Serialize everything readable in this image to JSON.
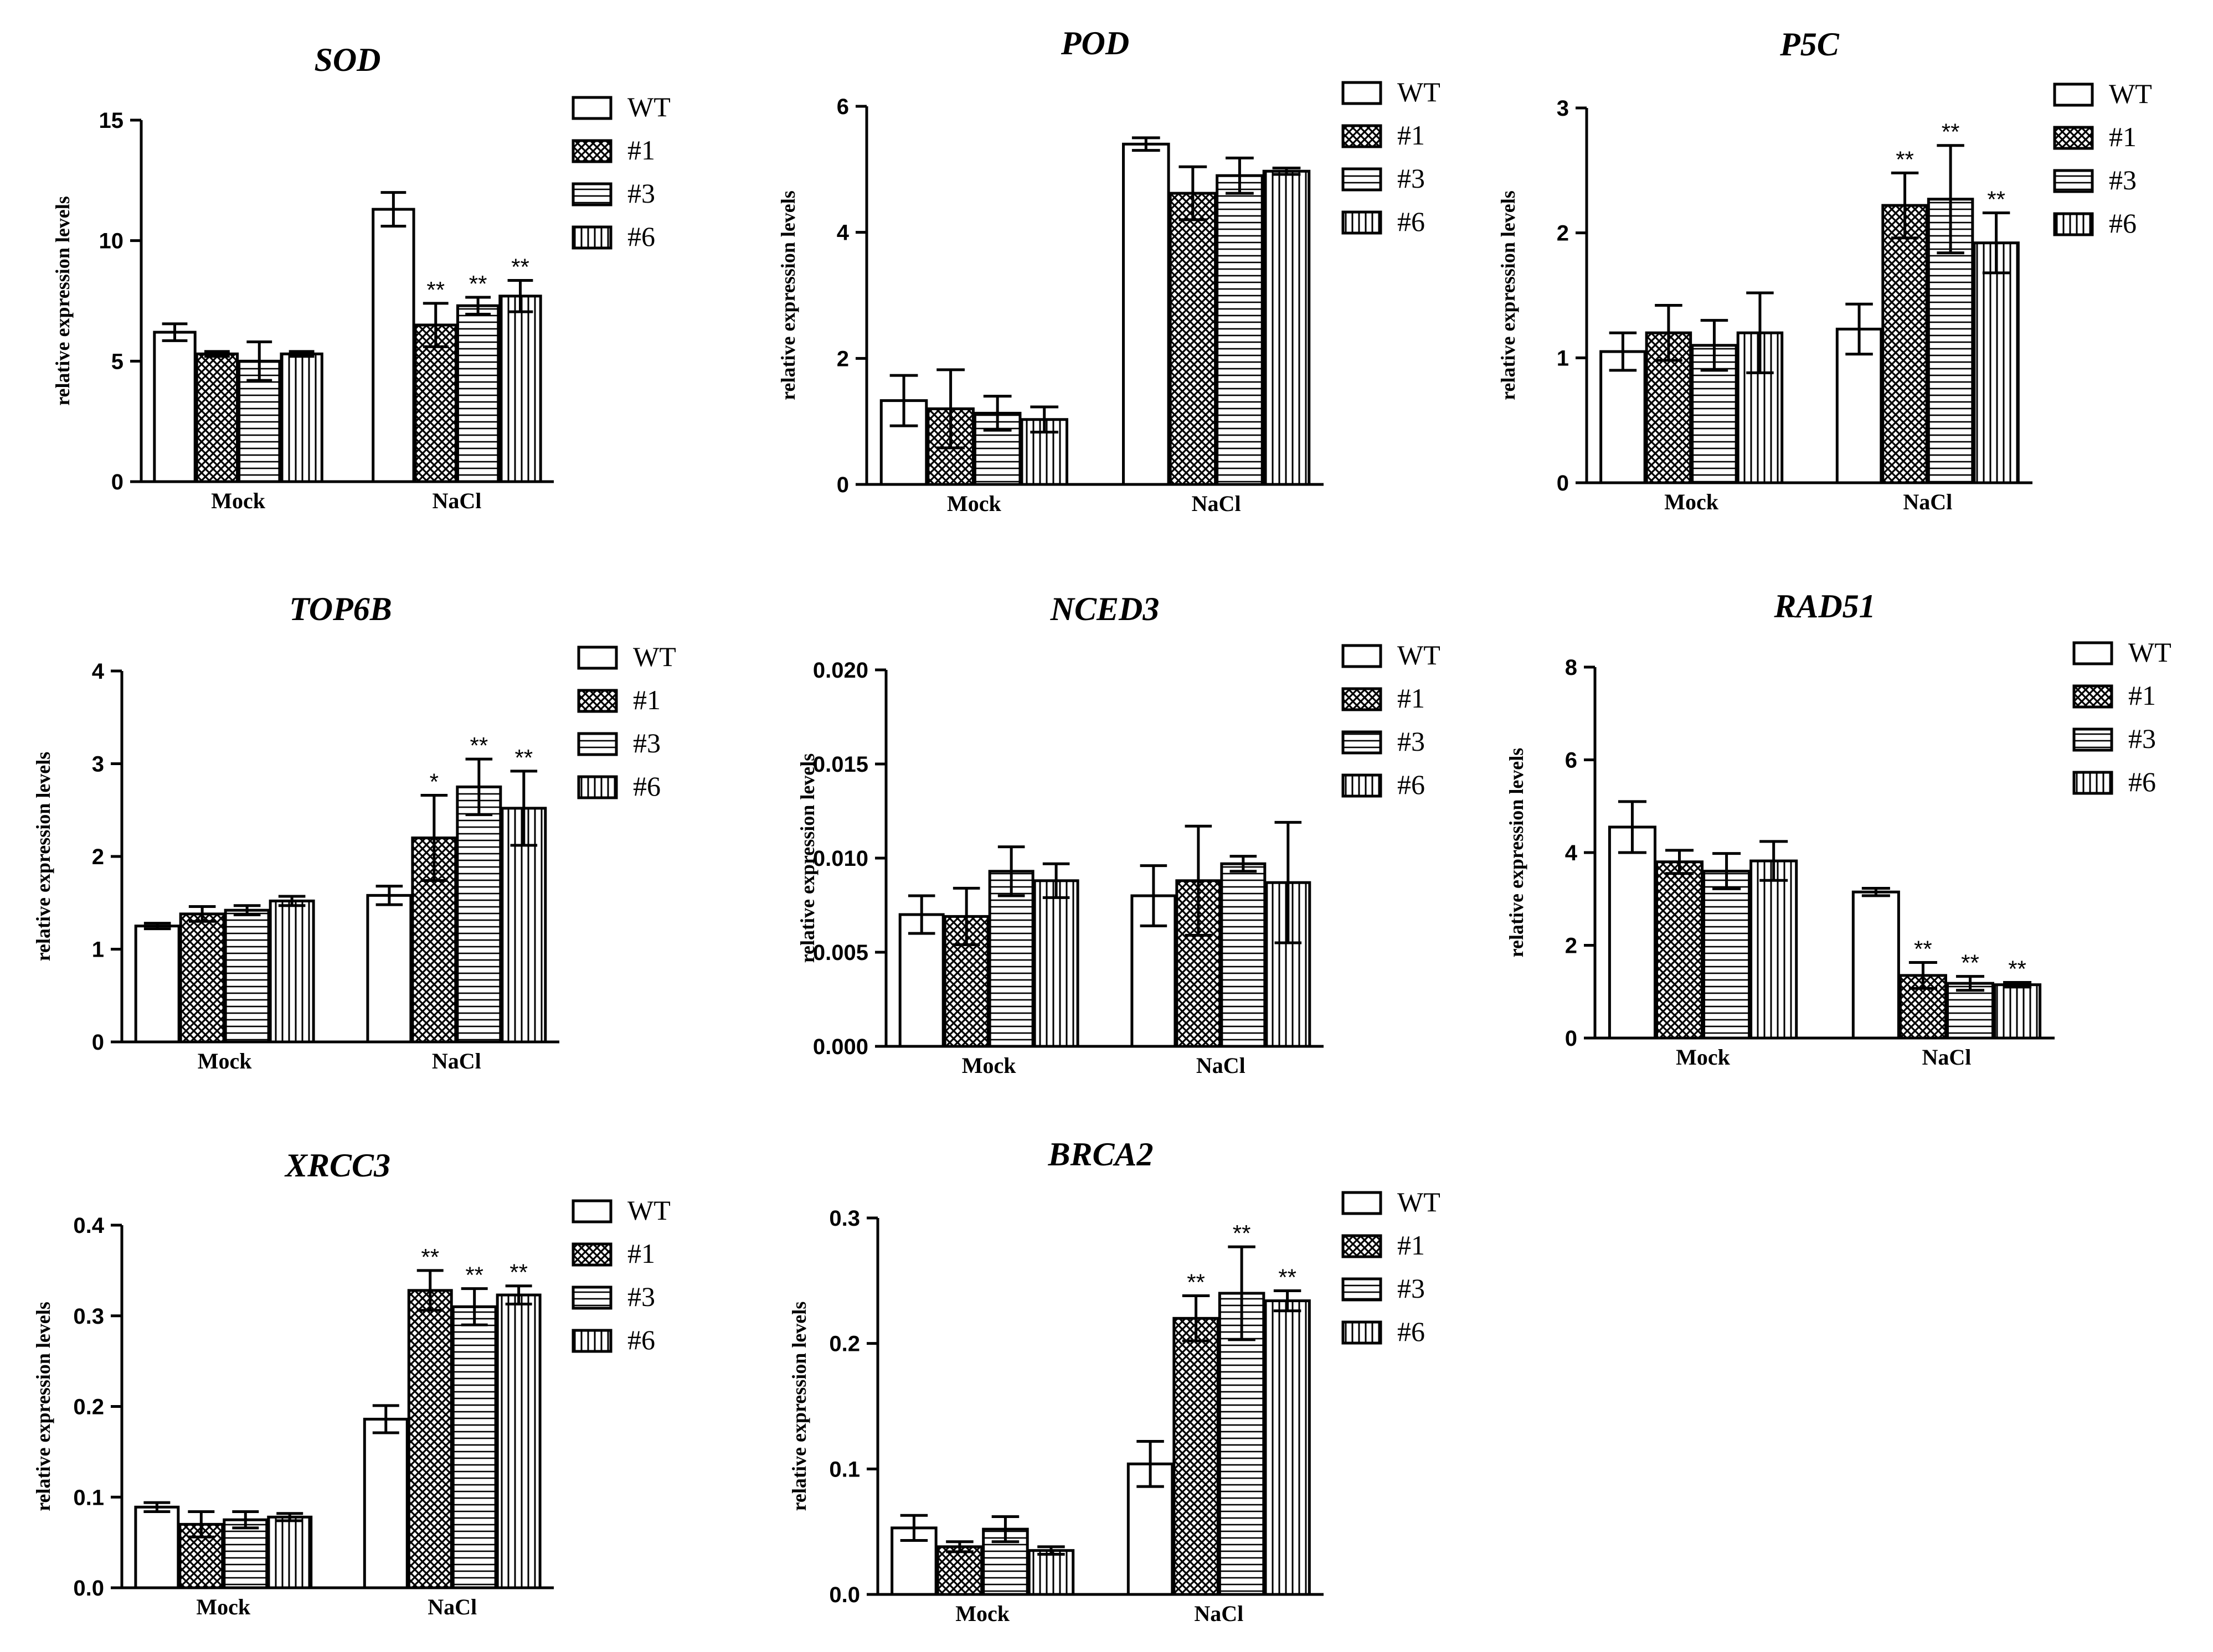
{
  "figure": {
    "legend_entries": [
      "WT",
      "#1",
      "#3",
      "#6"
    ],
    "series_patterns": [
      "blank",
      "crosshatch",
      "horizontal-lines",
      "vertical-lines"
    ],
    "colors": {
      "ink": "#000000",
      "background": "#ffffff"
    }
  },
  "chart_data": [
    {
      "type": "bar",
      "title": "SOD",
      "ylabel": "relative expression levels",
      "categories": [
        "Mock",
        "NaCl"
      ],
      "ylim": [
        0,
        15
      ],
      "yticks": [
        "0",
        "5",
        "10",
        "15"
      ],
      "series": [
        {
          "name": "WT",
          "values": [
            6.2,
            11.3
          ],
          "errors": [
            0.35,
            0.7
          ],
          "sig": [
            "",
            ""
          ]
        },
        {
          "name": "#1",
          "values": [
            5.3,
            6.5
          ],
          "errors": [
            0.1,
            0.9
          ],
          "sig": [
            "",
            "**"
          ]
        },
        {
          "name": "#3",
          "values": [
            5.0,
            7.3
          ],
          "errors": [
            0.8,
            0.35
          ],
          "sig": [
            "",
            "**"
          ]
        },
        {
          "name": "#6",
          "values": [
            5.3,
            7.7
          ],
          "errors": [
            0.1,
            0.65
          ],
          "sig": [
            "",
            "**"
          ]
        }
      ]
    },
    {
      "type": "bar",
      "title": "POD",
      "ylabel": "relative expression levels",
      "categories": [
        "Mock",
        "NaCl"
      ],
      "ylim": [
        0,
        6
      ],
      "yticks": [
        "0",
        "2",
        "4",
        "6"
      ],
      "series": [
        {
          "name": "WT",
          "values": [
            1.33,
            5.4
          ],
          "errors": [
            0.4,
            0.1
          ],
          "sig": [
            "",
            ""
          ]
        },
        {
          "name": "#1",
          "values": [
            1.2,
            4.62
          ],
          "errors": [
            0.62,
            0.42
          ],
          "sig": [
            "",
            ""
          ]
        },
        {
          "name": "#3",
          "values": [
            1.13,
            4.9
          ],
          "errors": [
            0.27,
            0.28
          ],
          "sig": [
            "",
            ""
          ]
        },
        {
          "name": "#6",
          "values": [
            1.03,
            4.97
          ],
          "errors": [
            0.2,
            0.05
          ],
          "sig": [
            "",
            ""
          ]
        }
      ]
    },
    {
      "type": "bar",
      "title": "P5C",
      "ylabel": "relative expression levels",
      "categories": [
        "Mock",
        "NaCl"
      ],
      "ylim": [
        0,
        3
      ],
      "yticks": [
        "0",
        "1",
        "2",
        "3"
      ],
      "series": [
        {
          "name": "WT",
          "values": [
            1.05,
            1.23
          ],
          "errors": [
            0.15,
            0.2
          ],
          "sig": [
            "",
            ""
          ]
        },
        {
          "name": "#1",
          "values": [
            1.2,
            2.22
          ],
          "errors": [
            0.22,
            0.26
          ],
          "sig": [
            "",
            "**"
          ]
        },
        {
          "name": "#3",
          "values": [
            1.1,
            2.27
          ],
          "errors": [
            0.2,
            0.43
          ],
          "sig": [
            "",
            "**"
          ]
        },
        {
          "name": "#6",
          "values": [
            1.2,
            1.92
          ],
          "errors": [
            0.32,
            0.24
          ],
          "sig": [
            "",
            "**"
          ]
        }
      ]
    },
    {
      "type": "bar",
      "title": "TOP6B",
      "ylabel": "relative expression levels",
      "categories": [
        "Mock",
        "NaCl"
      ],
      "ylim": [
        0,
        4
      ],
      "yticks": [
        "0",
        "1",
        "2",
        "3",
        "4"
      ],
      "series": [
        {
          "name": "WT",
          "values": [
            1.25,
            1.58
          ],
          "errors": [
            0.03,
            0.1
          ],
          "sig": [
            "",
            ""
          ]
        },
        {
          "name": "#1",
          "values": [
            1.38,
            2.2
          ],
          "errors": [
            0.08,
            0.46
          ],
          "sig": [
            "",
            "*"
          ]
        },
        {
          "name": "#3",
          "values": [
            1.42,
            2.75
          ],
          "errors": [
            0.05,
            0.3
          ],
          "sig": [
            "",
            "**"
          ]
        },
        {
          "name": "#6",
          "values": [
            1.52,
            2.52
          ],
          "errors": [
            0.05,
            0.4
          ],
          "sig": [
            "",
            "**"
          ]
        }
      ]
    },
    {
      "type": "bar",
      "title": "NCED3",
      "ylabel": "relative expression levels",
      "categories": [
        "Mock",
        "NaCl"
      ],
      "ylim": [
        0,
        0.02
      ],
      "yticks": [
        "0.000",
        "0.005",
        "0.010",
        "0.015",
        "0.020"
      ],
      "series": [
        {
          "name": "WT",
          "values": [
            0.007,
            0.008
          ],
          "errors": [
            0.001,
            0.0016
          ],
          "sig": [
            "",
            ""
          ]
        },
        {
          "name": "#1",
          "values": [
            0.0069,
            0.0088
          ],
          "errors": [
            0.0015,
            0.0029
          ],
          "sig": [
            "",
            ""
          ]
        },
        {
          "name": "#3",
          "values": [
            0.0093,
            0.0097
          ],
          "errors": [
            0.0013,
            0.0004
          ],
          "sig": [
            "",
            ""
          ]
        },
        {
          "name": "#6",
          "values": [
            0.0088,
            0.0087
          ],
          "errors": [
            0.0009,
            0.0032
          ],
          "sig": [
            "",
            ""
          ]
        }
      ]
    },
    {
      "type": "bar",
      "title": "RAD51",
      "ylabel": "relative expression levels",
      "categories": [
        "Mock",
        "NaCl"
      ],
      "ylim": [
        0,
        8
      ],
      "yticks": [
        "0",
        "2",
        "4",
        "6",
        "8"
      ],
      "series": [
        {
          "name": "WT",
          "values": [
            4.55,
            3.15
          ],
          "errors": [
            0.55,
            0.08
          ],
          "sig": [
            "",
            ""
          ]
        },
        {
          "name": "#1",
          "values": [
            3.8,
            1.35
          ],
          "errors": [
            0.25,
            0.28
          ],
          "sig": [
            "",
            "**"
          ]
        },
        {
          "name": "#3",
          "values": [
            3.6,
            1.18
          ],
          "errors": [
            0.38,
            0.15
          ],
          "sig": [
            "",
            "**"
          ]
        },
        {
          "name": "#6",
          "values": [
            3.82,
            1.15
          ],
          "errors": [
            0.42,
            0.05
          ],
          "sig": [
            "",
            "**"
          ]
        }
      ]
    },
    {
      "type": "bar",
      "title": "XRCC3",
      "ylabel": "relative expression levels",
      "categories": [
        "Mock",
        "NaCl"
      ],
      "ylim": [
        0,
        0.4
      ],
      "yticks": [
        "0.0",
        "0.1",
        "0.2",
        "0.3",
        "0.4"
      ],
      "series": [
        {
          "name": "WT",
          "values": [
            0.089,
            0.186
          ],
          "errors": [
            0.005,
            0.015
          ],
          "sig": [
            "",
            ""
          ]
        },
        {
          "name": "#1",
          "values": [
            0.07,
            0.328
          ],
          "errors": [
            0.014,
            0.022
          ],
          "sig": [
            "",
            "**"
          ]
        },
        {
          "name": "#3",
          "values": [
            0.075,
            0.31
          ],
          "errors": [
            0.009,
            0.02
          ],
          "sig": [
            "",
            "**"
          ]
        },
        {
          "name": "#6",
          "values": [
            0.078,
            0.323
          ],
          "errors": [
            0.004,
            0.01
          ],
          "sig": [
            "",
            "**"
          ]
        }
      ]
    },
    {
      "type": "bar",
      "title": "BRCA2",
      "ylabel": "relative expression levels",
      "categories": [
        "Mock",
        "NaCl"
      ],
      "ylim": [
        0,
        0.3
      ],
      "yticks": [
        "0.0",
        "0.1",
        "0.2",
        "0.3"
      ],
      "series": [
        {
          "name": "WT",
          "values": [
            0.053,
            0.104
          ],
          "errors": [
            0.01,
            0.018
          ],
          "sig": [
            "",
            ""
          ]
        },
        {
          "name": "#1",
          "values": [
            0.038,
            0.22
          ],
          "errors": [
            0.004,
            0.018
          ],
          "sig": [
            "",
            "**"
          ]
        },
        {
          "name": "#3",
          "values": [
            0.052,
            0.24
          ],
          "errors": [
            0.01,
            0.037
          ],
          "sig": [
            "",
            "**"
          ]
        },
        {
          "name": "#6",
          "values": [
            0.035,
            0.234
          ],
          "errors": [
            0.003,
            0.008
          ],
          "sig": [
            "",
            "**"
          ]
        }
      ]
    }
  ]
}
